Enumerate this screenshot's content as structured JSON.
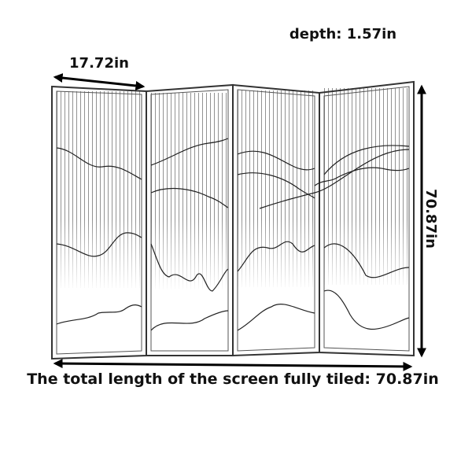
{
  "depth_label": "depth: 1.57in",
  "panel_width_label": "17.72in",
  "height_label": "70.87in",
  "total_length_label": "The total length of the screen fully tiled: 70.87in"
}
